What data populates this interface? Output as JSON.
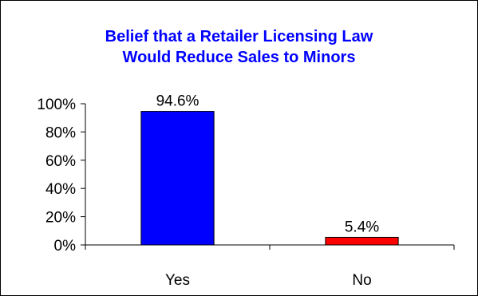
{
  "chart_data": {
    "type": "bar",
    "title_lines": [
      "Belief that a Retailer  Licensing Law",
      "Would Reduce Sales to Minors"
    ],
    "categories": [
      "Yes",
      "No"
    ],
    "values": [
      94.6,
      5.4
    ],
    "data_labels": [
      "94.6%",
      "5.4%"
    ],
    "bar_colors": [
      "#0000ff",
      "#ff0000"
    ],
    "ylim": [
      0,
      100
    ],
    "yticks": [
      0,
      20,
      40,
      60,
      80,
      100
    ],
    "ytick_labels": [
      "0%",
      "20%",
      "40%",
      "60%",
      "80%",
      "100%"
    ],
    "xlabel": "",
    "ylabel": "",
    "grid": false,
    "legend": "none"
  },
  "colors": {
    "title": "#0000ff",
    "axis": "#000000",
    "bar_outline": "#000000"
  }
}
